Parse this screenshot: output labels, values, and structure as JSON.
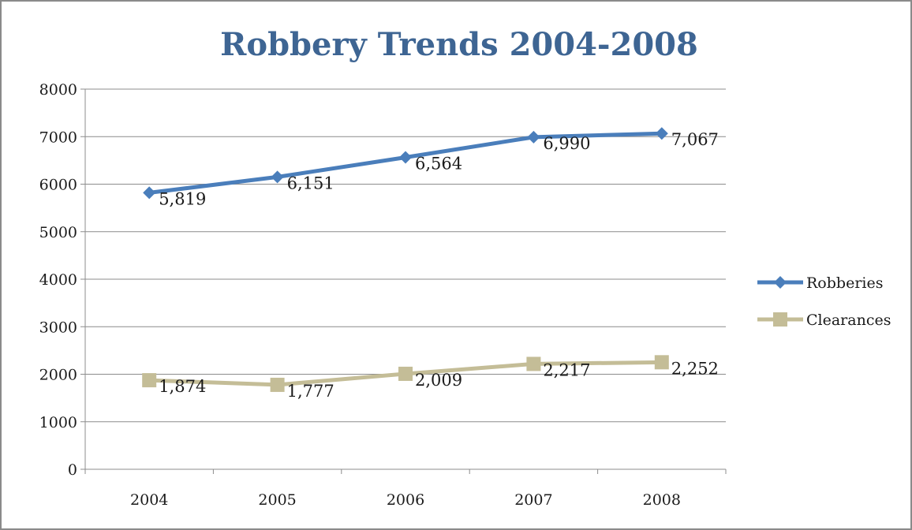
{
  "chart_data": {
    "type": "line",
    "title": "Robbery Trends 2004-2008",
    "xlabel": "",
    "ylabel": "",
    "categories": [
      "2004",
      "2005",
      "2006",
      "2007",
      "2008"
    ],
    "ylim": [
      0,
      8000
    ],
    "yticks": [
      "0",
      "1000",
      "2000",
      "3000",
      "4000",
      "5000",
      "6000",
      "7000",
      "8000"
    ],
    "grid": true,
    "legend_position": "right",
    "series": [
      {
        "name": "Robberies",
        "values": [
          5819,
          6151,
          6564,
          6990,
          7067
        ],
        "labels": [
          "5,819",
          "6,151",
          "6,564",
          "6,990",
          "7,067"
        ],
        "color": "#4a7ebb",
        "marker": "diamond"
      },
      {
        "name": "Clearances",
        "values": [
          1874,
          1777,
          2009,
          2217,
          2252
        ],
        "labels": [
          "1,874",
          "1,777",
          "2,009",
          "2,217",
          "2,252"
        ],
        "color": "#c4bd97",
        "marker": "square"
      }
    ]
  }
}
